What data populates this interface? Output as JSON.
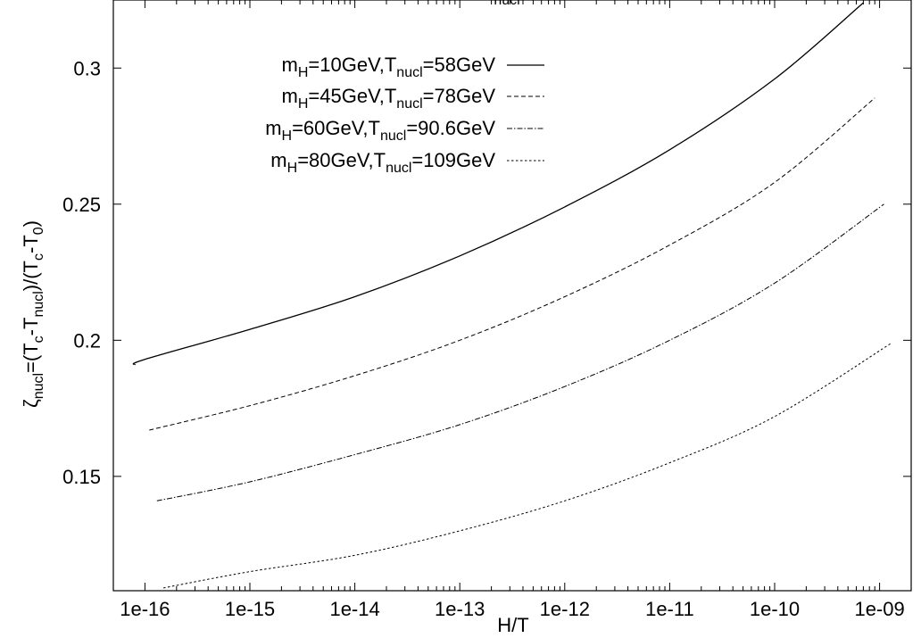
{
  "chart_data": {
    "type": "line",
    "title": "",
    "x_scale": "log",
    "xlabel": "H/T",
    "ylabel": {
      "base": "ζ",
      "base_sub": "nucl",
      "mid1": "=(T",
      "mid1_sub": "c",
      "mid2": "-T",
      "mid2_sub": "nucl",
      "mid3": ")/(T",
      "mid3_sub": "c",
      "mid4": "-T",
      "mid4_sub": "0",
      "end": ")"
    },
    "top_label_fragment": "nucl",
    "xlim": [
      5e-17,
      2e-09
    ],
    "ylim": [
      0.108,
      0.325
    ],
    "x_ticks": [
      1e-16,
      1e-15,
      1e-14,
      1e-13,
      1e-12,
      1e-11,
      1e-10,
      1e-09
    ],
    "x_tick_labels": [
      "1e-16",
      "1e-15",
      "1e-14",
      "1e-13",
      "1e-12",
      "1e-11",
      "1e-10",
      "1e-09"
    ],
    "y_ticks": [
      0.15,
      0.2,
      0.25,
      0.3
    ],
    "y_tick_labels": [
      "0.15",
      "0.2",
      "0.25",
      "0.3"
    ],
    "grid": false,
    "legend_position": "top-left",
    "series": [
      {
        "legend": {
          "p1": "m",
          "p1_sub": "H",
          "p2": "=10GeV,T",
          "p2_sub": "nucl",
          "p3": "=58GeV"
        },
        "style": "solid",
        "x": [
          8e-17,
          1e-16,
          1e-15,
          1e-14,
          1e-13,
          1e-12,
          1e-11,
          1e-10,
          7e-10
        ],
        "y": [
          0.191,
          0.193,
          0.204,
          0.216,
          0.231,
          0.249,
          0.27,
          0.296,
          0.324
        ]
      },
      {
        "legend": {
          "p1": "m",
          "p1_sub": "H",
          "p2": "=45GeV,T",
          "p2_sub": "nucl",
          "p3": "=78GeV"
        },
        "style": "dashed",
        "x": [
          1.1e-16,
          1e-15,
          1e-14,
          1e-13,
          1e-12,
          1e-11,
          1e-10,
          9e-10
        ],
        "y": [
          0.167,
          0.176,
          0.187,
          0.2,
          0.216,
          0.235,
          0.258,
          0.289
        ]
      },
      {
        "legend": {
          "p1": "m",
          "p1_sub": "H",
          "p2": "=60GeV,T",
          "p2_sub": "nucl",
          "p3": "=90.6GeV"
        },
        "style": "dashdot",
        "x": [
          1.3e-16,
          1e-15,
          1e-14,
          1e-13,
          1e-12,
          1e-11,
          1e-10,
          1.1e-09
        ],
        "y": [
          0.141,
          0.148,
          0.158,
          0.169,
          0.183,
          0.2,
          0.221,
          0.25
        ]
      },
      {
        "legend": {
          "p1": "m",
          "p1_sub": "H",
          "p2": "=80GeV,T",
          "p2_sub": "nucl",
          "p3": "=109GeV"
        },
        "style": "dotted",
        "x": [
          1.5e-16,
          1e-15,
          1e-14,
          1e-13,
          1e-12,
          1e-11,
          1e-10,
          1.3e-09
        ],
        "y": [
          0.109,
          0.115,
          0.121,
          0.13,
          0.141,
          0.155,
          0.172,
          0.199
        ]
      }
    ]
  }
}
